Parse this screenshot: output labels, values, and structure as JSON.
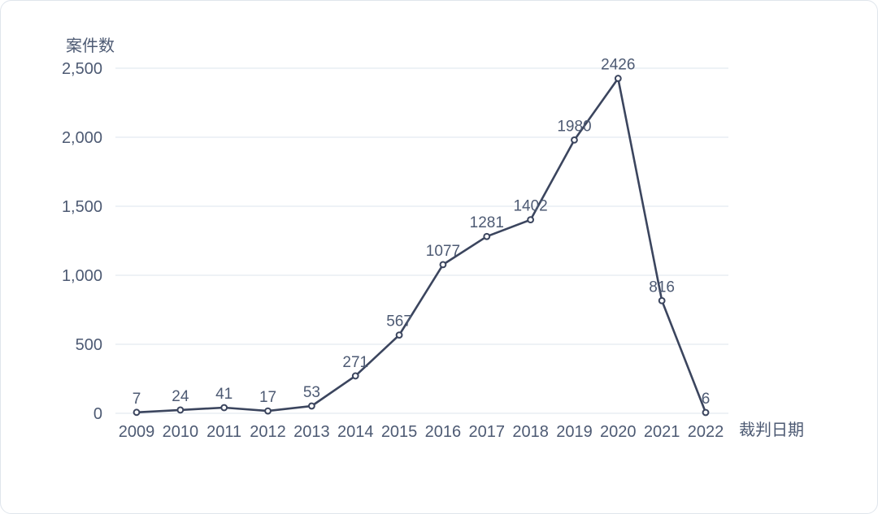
{
  "card": {
    "background": "#ffffff",
    "border_color": "#dfe5ec"
  },
  "chart_data": {
    "type": "line",
    "title": "",
    "xlabel": "裁判日期",
    "ylabel": "案件数",
    "categories": [
      "2009",
      "2010",
      "2011",
      "2012",
      "2013",
      "2014",
      "2015",
      "2016",
      "2017",
      "2018",
      "2019",
      "2020",
      "2021",
      "2022"
    ],
    "series": [
      {
        "name": "案件数",
        "values": [
          7,
          24,
          41,
          17,
          53,
          271,
          567,
          1077,
          1281,
          1402,
          1980,
          2426,
          816,
          6
        ],
        "data_labels": [
          "7",
          "24",
          "41",
          "17",
          "53",
          "271",
          "567",
          "1077",
          "1281",
          "1402",
          "1980",
          "2426",
          "816",
          "6"
        ]
      }
    ],
    "y_ticks": [
      0,
      500,
      1000,
      1500,
      2000,
      2500
    ],
    "y_tick_labels": [
      "0",
      "500",
      "1,000",
      "1,500",
      "2,000",
      "2,500"
    ],
    "ylim": [
      0,
      2500
    ],
    "grid": "horizontal",
    "legend_position": "none",
    "colors": {
      "line": "#3b455e",
      "marker_fill": "#ffffff",
      "marker_stroke": "#3b455e",
      "grid": "#e9eef4",
      "text": "#4d5a73"
    }
  }
}
